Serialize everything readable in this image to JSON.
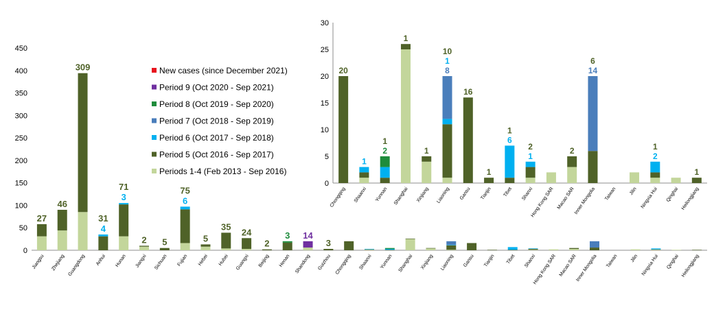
{
  "chart_data": [
    {
      "type": "bar",
      "stacked": true,
      "ylim": [
        0,
        450
      ],
      "yticks": [
        0,
        50,
        100,
        150,
        200,
        250,
        300,
        350,
        400,
        450
      ],
      "categories": [
        "Jiangsu",
        "Zhejiang",
        "Guangdong",
        "Anhui",
        "Hunan",
        "Jiangxi",
        "Sichuan",
        "Fujian",
        "Hebei",
        "Hubei",
        "Guangxi",
        "Beijing",
        "Henan",
        "Shandong",
        "Guizhou",
        "Chongqing",
        "Shaanxi",
        "Yunnan",
        "Shanghai",
        "Xinjiang",
        "Liaoning",
        "Gansu",
        "Tianjin",
        "Tibet",
        "Shanxi",
        "Hong Kong SAR",
        "Macao SAR",
        "Inner Mongolia",
        "Taiwan",
        "Jilin",
        "Ningxia Hui",
        "Qinghai",
        "Heilongjiang"
      ],
      "series": [
        {
          "name": "New cases (since December 2021)",
          "color": "#e8141e",
          "values": [
            0,
            0,
            0,
            0,
            0,
            0,
            0,
            0,
            0,
            0,
            0,
            0,
            0,
            0,
            0,
            0,
            0,
            0,
            0,
            0,
            0,
            0,
            0,
            0,
            0,
            0,
            0,
            0,
            0,
            0,
            0,
            0,
            0
          ]
        },
        {
          "name": "Period 9 (Oct 2020 - Sep 2021)",
          "color": "#7030a0",
          "values": [
            0,
            0,
            0,
            0,
            0,
            0,
            0,
            0,
            0,
            0,
            0,
            0,
            0,
            14,
            0,
            0,
            0,
            0,
            0,
            0,
            0,
            0,
            0,
            0,
            0,
            0,
            0,
            0,
            0,
            0,
            0,
            0,
            0
          ]
        },
        {
          "name": "Period 8 (Oct 2019 - Sep 2020)",
          "color": "#1e8c3c",
          "values": [
            0,
            0,
            0,
            0,
            0,
            0,
            0,
            0,
            0,
            0,
            0,
            0,
            3,
            0,
            0,
            0,
            0,
            2,
            0,
            0,
            0,
            0,
            0,
            0,
            0,
            0,
            0,
            0,
            0,
            0,
            0,
            0,
            0
          ]
        },
        {
          "name": "Period 7 (Oct 2018 - Sep 2019)",
          "color": "#4a7ebb",
          "values": [
            0,
            0,
            0,
            0,
            0,
            0,
            0,
            0,
            0,
            0,
            0,
            0,
            0,
            0,
            0,
            0,
            0,
            0,
            0,
            0,
            8,
            0,
            0,
            0,
            0,
            0,
            0,
            14,
            0,
            0,
            0,
            0,
            0
          ]
        },
        {
          "name": "Period 6 (Oct 2017 - Sep 2018)",
          "color": "#00b0f0",
          "values": [
            0,
            0,
            0,
            4,
            3,
            0,
            0,
            6,
            0,
            0,
            0,
            0,
            0,
            0,
            0,
            0,
            1,
            2,
            0,
            0,
            1,
            0,
            0,
            6,
            1,
            0,
            0,
            0,
            0,
            0,
            2,
            0,
            0
          ]
        },
        {
          "name": "Period 5 (Oct 2016 - Sep 2017)",
          "color": "#4f6228",
          "values": [
            27,
            46,
            309,
            31,
            71,
            2,
            5,
            75,
            5,
            35,
            24,
            2,
            17,
            0,
            3,
            20,
            1,
            1,
            1,
            1,
            10,
            16,
            1,
            1,
            2,
            0,
            2,
            6,
            0,
            0,
            1,
            0,
            1
          ]
        },
        {
          "name": "Periods 1-4 (Feb 2013 - Sep 2016)",
          "color": "#c3d69b",
          "values": [
            31,
            44,
            85,
            0,
            31,
            8,
            0,
            16,
            8,
            4,
            3,
            0,
            0,
            6,
            0,
            0,
            1,
            0,
            25,
            4,
            1,
            0,
            0,
            0,
            1,
            2,
            3,
            0,
            0,
            2,
            1,
            1,
            0
          ]
        }
      ],
      "data_labels": [
        {
          "category": "Jiangsu",
          "text": "27",
          "color": "#4f6228"
        },
        {
          "category": "Zhejiang",
          "text": "46",
          "color": "#4f6228"
        },
        {
          "category": "Guangdong",
          "text": "309",
          "color": "#4f6228"
        },
        {
          "category": "Anhui",
          "text": "4",
          "color": "#00b0f0"
        },
        {
          "category": "Anhui",
          "text": "31",
          "color": "#4f6228"
        },
        {
          "category": "Hunan",
          "text": "3",
          "color": "#00b0f0"
        },
        {
          "category": "Hunan",
          "text": "71",
          "color": "#4f6228"
        },
        {
          "category": "Jiangxi",
          "text": "2",
          "color": "#4f6228"
        },
        {
          "category": "Sichuan",
          "text": "5",
          "color": "#4f6228"
        },
        {
          "category": "Fujian",
          "text": "6",
          "color": "#00b0f0"
        },
        {
          "category": "Fujian",
          "text": "75",
          "color": "#4f6228"
        },
        {
          "category": "Hebei",
          "text": "5",
          "color": "#4f6228"
        },
        {
          "category": "Hubei",
          "text": "35",
          "color": "#4f6228"
        },
        {
          "category": "Guangxi",
          "text": "24",
          "color": "#4f6228"
        },
        {
          "category": "Beijing",
          "text": "2",
          "color": "#4f6228"
        },
        {
          "category": "Henan",
          "text": "3",
          "color": "#1e8c3c"
        },
        {
          "category": "Shandong",
          "text": "14",
          "color": "#7030a0"
        },
        {
          "category": "Guizhou",
          "text": "3",
          "color": "#4f6228"
        }
      ]
    },
    {
      "type": "bar",
      "stacked": true,
      "ylim": [
        0,
        30
      ],
      "yticks": [
        0,
        5,
        10,
        15,
        20,
        25,
        30
      ],
      "categories": [
        "Chongqing",
        "Shaanxi",
        "Yunnan",
        "Shanghai",
        "Xinjiang",
        "Liaoning",
        "Gansu",
        "Tianjin",
        "Tibet",
        "Shanxi",
        "Hong Kong SAR",
        "Macao SAR",
        "Inner Mongolia",
        "Taiwan",
        "Jilin",
        "Ningxia Hui",
        "Qinghai",
        "Heilongjiang"
      ],
      "series": [
        {
          "name": "Period 8 (Oct 2019 - Sep 2020)",
          "color": "#1e8c3c",
          "values": [
            0,
            0,
            2,
            0,
            0,
            0,
            0,
            0,
            0,
            0,
            0,
            0,
            0,
            0,
            0,
            0,
            0,
            0
          ]
        },
        {
          "name": "Period 7 (Oct 2018 - Sep 2019)",
          "color": "#4a7ebb",
          "values": [
            0,
            0,
            0,
            0,
            0,
            8,
            0,
            0,
            0,
            0,
            0,
            0,
            14,
            0,
            0,
            0,
            0,
            0
          ]
        },
        {
          "name": "Period 6 (Oct 2017 - Sep 2018)",
          "color": "#00b0f0",
          "values": [
            0,
            1,
            2,
            0,
            0,
            1,
            0,
            0,
            6,
            1,
            0,
            0,
            0,
            0,
            0,
            2,
            0,
            0
          ]
        },
        {
          "name": "Period 5 (Oct 2016 - Sep 2017)",
          "color": "#4f6228",
          "values": [
            20,
            1,
            1,
            1,
            1,
            10,
            16,
            1,
            1,
            2,
            0,
            2,
            6,
            0,
            0,
            1,
            0,
            1
          ]
        },
        {
          "name": "Periods 1-4 (Feb 2013 - Sep 2016)",
          "color": "#c3d69b",
          "values": [
            0,
            1,
            0,
            25,
            4,
            1,
            0,
            0,
            0,
            1,
            2,
            3,
            0,
            0,
            2,
            1,
            1,
            0
          ]
        }
      ],
      "data_labels": [
        {
          "category": "Chongqing",
          "text": "20",
          "color": "#4f6228"
        },
        {
          "category": "Shaanxi",
          "text": "1",
          "color": "#00b0f0"
        },
        {
          "category": "Yunnan",
          "text": "2",
          "color": "#1e8c3c"
        },
        {
          "category": "Yunnan",
          "text": "1",
          "color": "#4f6228"
        },
        {
          "category": "Shanghai",
          "text": "1",
          "color": "#4f6228"
        },
        {
          "category": "Xinjiang",
          "text": "1",
          "color": "#4f6228"
        },
        {
          "category": "Liaoning",
          "text": "8",
          "color": "#4a7ebb"
        },
        {
          "category": "Liaoning",
          "text": "1",
          "color": "#00b0f0"
        },
        {
          "category": "Liaoning",
          "text": "10",
          "color": "#4f6228"
        },
        {
          "category": "Gansu",
          "text": "16",
          "color": "#4f6228"
        },
        {
          "category": "Tianjin",
          "text": "1",
          "color": "#4f6228"
        },
        {
          "category": "Tibet",
          "text": "6",
          "color": "#00b0f0"
        },
        {
          "category": "Tibet",
          "text": "1",
          "color": "#4f6228"
        },
        {
          "category": "Shanxi",
          "text": "1",
          "color": "#00b0f0"
        },
        {
          "category": "Shanxi",
          "text": "2",
          "color": "#4f6228"
        },
        {
          "category": "Macao SAR",
          "text": "2",
          "color": "#4f6228"
        },
        {
          "category": "Inner Mongolia",
          "text": "14",
          "color": "#4a7ebb"
        },
        {
          "category": "Inner Mongolia",
          "text": "6",
          "color": "#4f6228"
        },
        {
          "category": "Ningxia Hui",
          "text": "2",
          "color": "#00b0f0"
        },
        {
          "category": "Ningxia Hui",
          "text": "1",
          "color": "#4f6228"
        },
        {
          "category": "Heilongjiang",
          "text": "1",
          "color": "#4f6228"
        }
      ]
    }
  ],
  "legend": [
    {
      "label": "New cases (since December 2021)",
      "color": "#e8141e"
    },
    {
      "label": "Period 9 (Oct 2020 - Sep 2021)",
      "color": "#7030a0"
    },
    {
      "label": "Period 8 (Oct 2019 - Sep 2020)",
      "color": "#1e8c3c"
    },
    {
      "label": "Period 7 (Oct 2018 - Sep 2019)",
      "color": "#4a7ebb"
    },
    {
      "label": "Period 6 (Oct 2017 - Sep 2018)",
      "color": "#00b0f0"
    },
    {
      "label": "Period 5 (Oct 2016 - Sep 2017)",
      "color": "#4f6228"
    },
    {
      "label": "Periods 1-4 (Feb 2013 - Sep 2016)",
      "color": "#c3d69b"
    }
  ]
}
